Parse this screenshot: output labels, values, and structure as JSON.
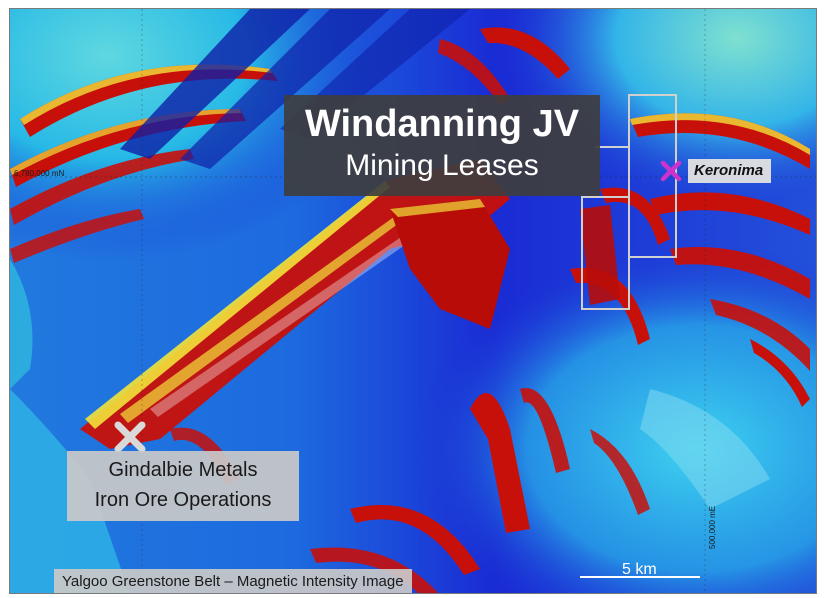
{
  "map": {
    "title": "Windanning JV",
    "subtitle": "Mining Leases",
    "caption": "Yalgoo Greenstone Belt – Magnetic Intensity Image",
    "scale_label": "5 km",
    "grid": {
      "northing_label": "6,780,000 mN",
      "easting_label": "500,000 mE"
    },
    "locations": {
      "keronima": {
        "label": "Keronima",
        "marker_color": "#cc33cc",
        "marker_icon": "x-marker-icon"
      },
      "gindalbie": {
        "label_line1": "Gindalbie Metals",
        "label_line2": "Iron Ore Operations",
        "marker_color": "#d9d9d9",
        "marker_icon": "x-marker-icon"
      }
    },
    "lease_outline_color": "#d0d0d0",
    "colors": {
      "low_intensity": "#1a2bd4",
      "mid_intensity": "#22b8e8",
      "high_intensity": "#c8100a",
      "ridge_highlight": "#f2e23a",
      "label_box_dark": "#3e3e3e",
      "label_box_light": "#c8c8c8"
    }
  }
}
